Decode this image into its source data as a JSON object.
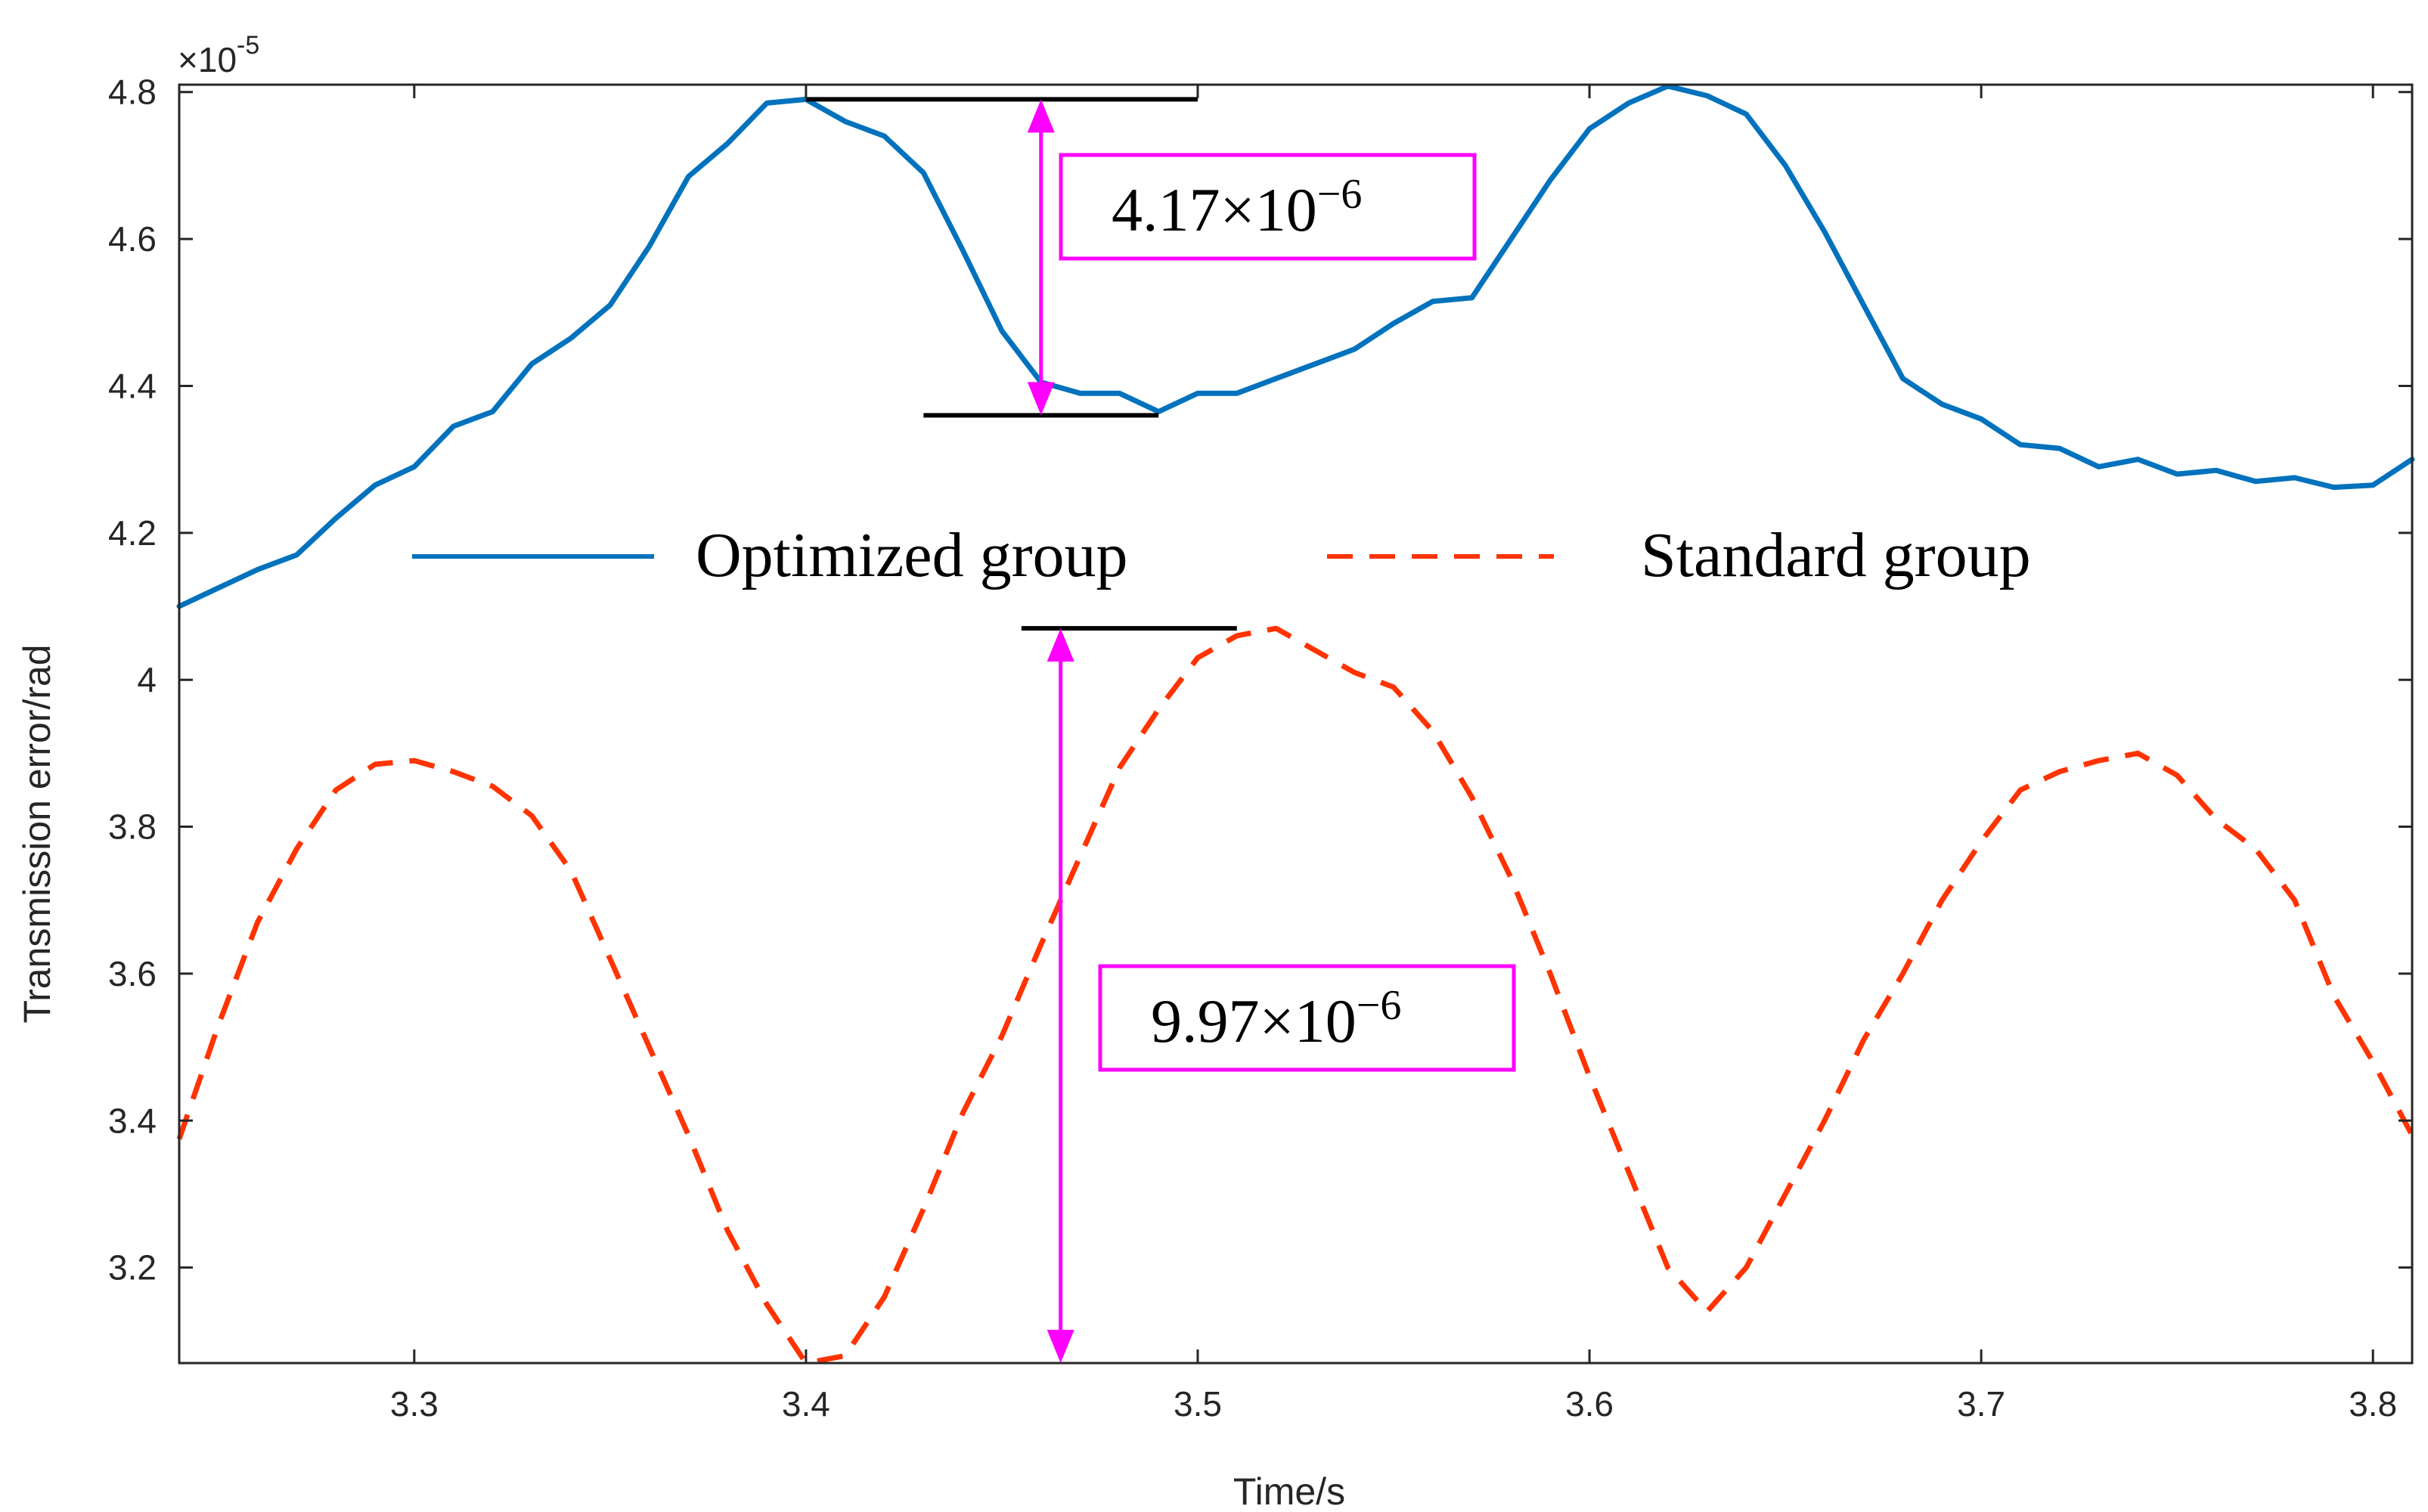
{
  "chart_data": {
    "type": "line",
    "title": "",
    "xlabel": "Time/s",
    "ylabel": "Transmission error/rad",
    "y_exponent_prefix": "×10",
    "y_exponent": "-5",
    "xlim": [
      3.24,
      3.81
    ],
    "ylim": [
      3.07,
      4.81
    ],
    "x_ticks": [
      3.3,
      3.4,
      3.5,
      3.6,
      3.7,
      3.8
    ],
    "x_tick_labels": [
      "3.3",
      "3.4",
      "3.5",
      "3.6",
      "3.7",
      "3.8"
    ],
    "y_ticks": [
      3.2,
      3.4,
      3.6,
      3.8,
      4.0,
      4.2,
      4.4,
      4.6,
      4.8
    ],
    "y_tick_labels": [
      "3.2",
      "3.4",
      "3.6",
      "3.8",
      "4",
      "4.2",
      "4.4",
      "4.6",
      "4.8"
    ],
    "legend_position": "middle",
    "series": [
      {
        "name": "Optimized group",
        "style": "solid",
        "color": "#0072BD",
        "x": [
          3.24,
          3.25,
          3.26,
          3.27,
          3.28,
          3.29,
          3.3,
          3.31,
          3.32,
          3.33,
          3.34,
          3.35,
          3.36,
          3.37,
          3.38,
          3.39,
          3.4,
          3.41,
          3.42,
          3.43,
          3.44,
          3.45,
          3.46,
          3.47,
          3.48,
          3.49,
          3.5,
          3.51,
          3.52,
          3.53,
          3.54,
          3.55,
          3.56,
          3.57,
          3.58,
          3.59,
          3.6,
          3.61,
          3.62,
          3.63,
          3.64,
          3.65,
          3.66,
          3.67,
          3.68,
          3.69,
          3.7,
          3.71,
          3.72,
          3.73,
          3.74,
          3.75,
          3.76,
          3.77,
          3.78,
          3.79,
          3.8,
          3.81
        ],
        "values": [
          4.1,
          4.125,
          4.15,
          4.17,
          4.22,
          4.265,
          4.29,
          4.345,
          4.365,
          4.43,
          4.465,
          4.51,
          4.59,
          4.685,
          4.73,
          4.785,
          4.79,
          4.76,
          4.74,
          4.69,
          4.585,
          4.475,
          4.405,
          4.39,
          4.39,
          4.365,
          4.39,
          4.39,
          4.41,
          4.43,
          4.45,
          4.485,
          4.515,
          4.52,
          4.6,
          4.68,
          4.75,
          4.785,
          4.808,
          4.795,
          4.77,
          4.7,
          4.61,
          4.51,
          4.41,
          4.375,
          4.355,
          4.32,
          4.315,
          4.29,
          4.3,
          4.28,
          4.285,
          4.27,
          4.275,
          4.262,
          4.265,
          4.3
        ]
      },
      {
        "name": "Standard group",
        "style": "dashed",
        "color": "#FF3300",
        "x": [
          3.24,
          3.25,
          3.26,
          3.27,
          3.28,
          3.29,
          3.3,
          3.31,
          3.32,
          3.33,
          3.34,
          3.35,
          3.36,
          3.37,
          3.38,
          3.39,
          3.4,
          3.41,
          3.42,
          3.43,
          3.44,
          3.45,
          3.46,
          3.47,
          3.48,
          3.49,
          3.5,
          3.51,
          3.52,
          3.53,
          3.54,
          3.55,
          3.56,
          3.57,
          3.58,
          3.59,
          3.6,
          3.61,
          3.62,
          3.63,
          3.64,
          3.65,
          3.66,
          3.67,
          3.68,
          3.69,
          3.7,
          3.71,
          3.72,
          3.73,
          3.74,
          3.75,
          3.76,
          3.77,
          3.78,
          3.79,
          3.8,
          3.81
        ],
        "values": [
          3.375,
          3.53,
          3.67,
          3.77,
          3.85,
          3.885,
          3.89,
          3.875,
          3.855,
          3.815,
          3.74,
          3.62,
          3.5,
          3.38,
          3.25,
          3.15,
          3.07,
          3.08,
          3.16,
          3.28,
          3.41,
          3.515,
          3.64,
          3.76,
          3.88,
          3.96,
          4.03,
          4.06,
          4.07,
          4.04,
          4.01,
          3.99,
          3.93,
          3.84,
          3.73,
          3.6,
          3.46,
          3.33,
          3.2,
          3.14,
          3.2,
          3.3,
          3.4,
          3.51,
          3.6,
          3.7,
          3.78,
          3.85,
          3.875,
          3.89,
          3.9,
          3.87,
          3.81,
          3.77,
          3.7,
          3.57,
          3.48,
          3.38
        ]
      }
    ],
    "annotations": [
      {
        "text": "4.17×10",
        "exponent": "−6",
        "color": "#FF00FF",
        "arrow_x": 3.46,
        "upper_y": 4.79,
        "lower_y": 4.36,
        "upper_line_x": [
          3.4,
          3.5
        ],
        "lower_line_x": [
          3.43,
          3.49
        ]
      },
      {
        "text": "9.97×10",
        "exponent": "−6",
        "color": "#FF00FF",
        "arrow_x": 3.465,
        "upper_y": 4.07,
        "lower_y": 3.07,
        "upper_line_x": [
          3.455,
          3.51
        ]
      }
    ]
  }
}
